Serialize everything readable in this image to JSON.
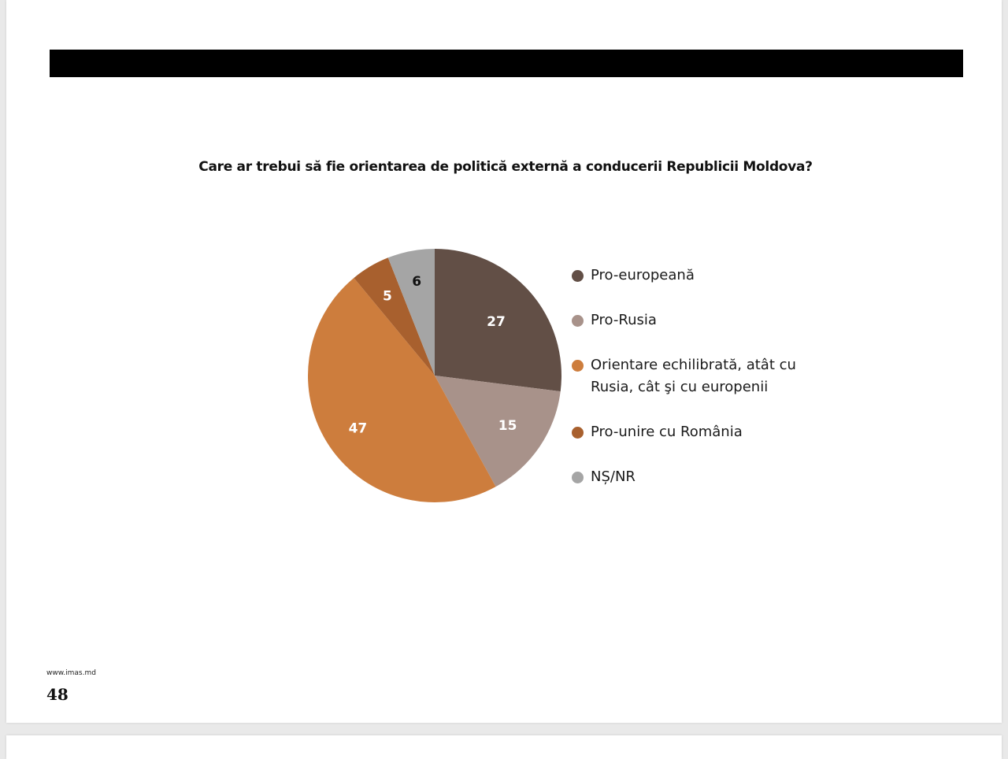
{
  "page": {
    "footer_url": "www.imas.md",
    "page_number": "48"
  },
  "chart_data": {
    "type": "pie",
    "title": "Care ar trebui să fie orientarea de politică externă a conducerii Republicii Moldova?",
    "legend_position": "right",
    "slices": [
      {
        "label": "Pro-europeană",
        "value": 27,
        "color": "#624f46",
        "label_color": "#ffffff"
      },
      {
        "label": "Pro-Rusia",
        "value": 15,
        "color": "#a8928a",
        "label_color": "#ffffff"
      },
      {
        "label": "Orientare echilibrată, atât cu Rusia, cât şi cu europenii",
        "value": 47,
        "color": "#cd7d3d",
        "label_color": "#ffffff"
      },
      {
        "label": "Pro-unire cu România",
        "value": 5,
        "color": "#a8602e",
        "label_color": "#ffffff"
      },
      {
        "label": "NȘ/NR",
        "value": 6,
        "color": "#a5a5a5",
        "label_color": "#111111"
      }
    ]
  }
}
